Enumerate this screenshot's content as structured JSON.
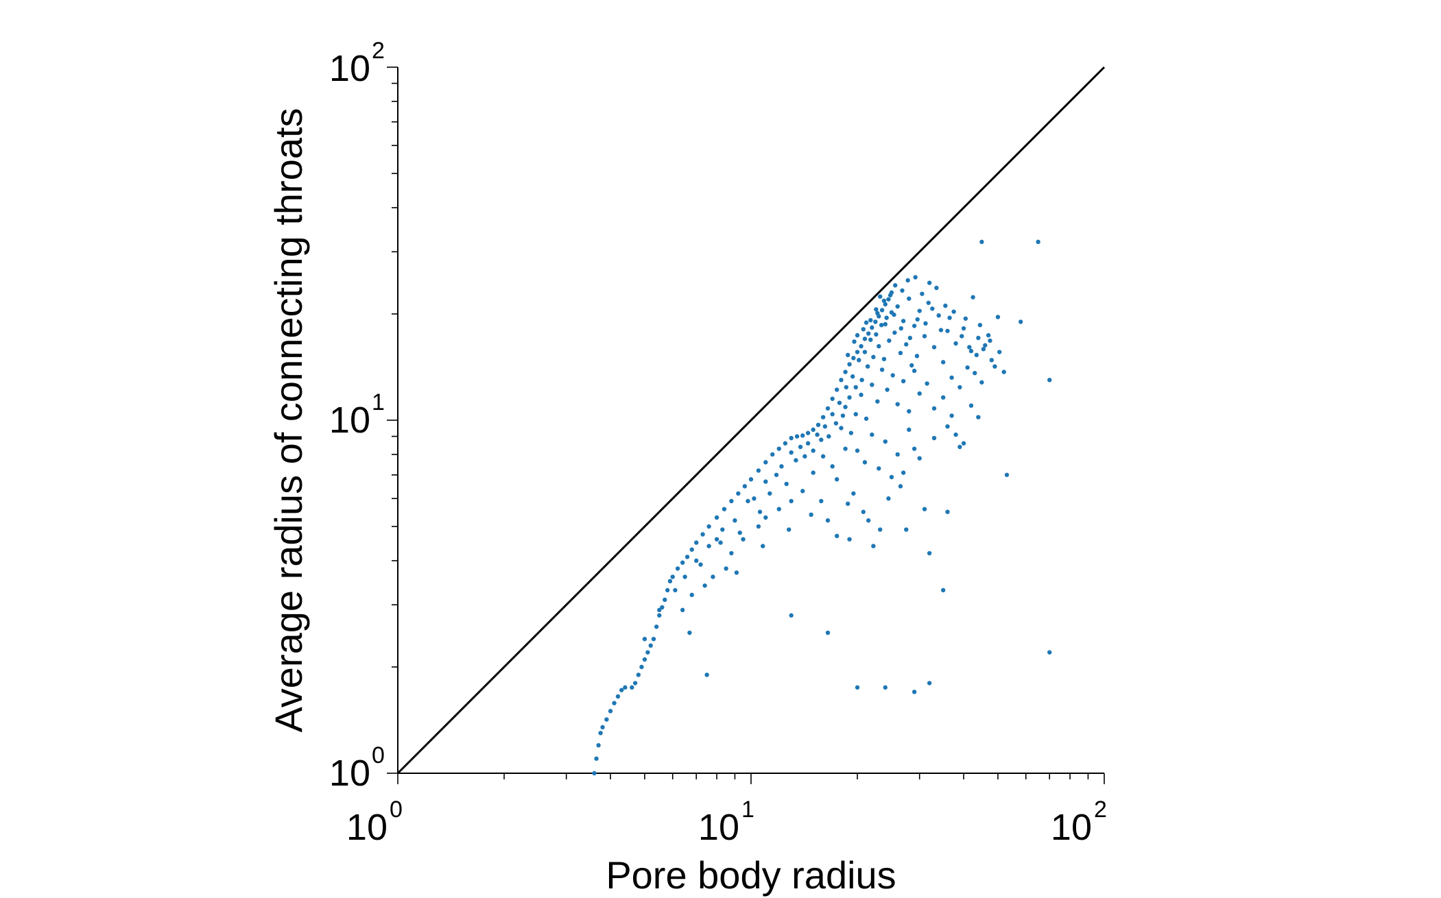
{
  "chart_data": {
    "type": "scatter",
    "xlabel": "Pore body radius",
    "ylabel": "Average radius of connecting throats",
    "xscale": "log",
    "yscale": "log",
    "xlim": [
      1,
      100
    ],
    "ylim": [
      1,
      100
    ],
    "x_ticks": [
      {
        "base": "10",
        "exp": "0",
        "value": 1
      },
      {
        "base": "10",
        "exp": "1",
        "value": 10
      },
      {
        "base": "10",
        "exp": "2",
        "value": 100
      }
    ],
    "y_ticks": [
      {
        "base": "10",
        "exp": "0",
        "value": 1
      },
      {
        "base": "10",
        "exp": "1",
        "value": 10
      },
      {
        "base": "10",
        "exp": "2",
        "value": 100
      }
    ],
    "grid": false,
    "reference_line": {
      "type": "y=x",
      "color": "#000000"
    },
    "marker_color": "#1f77b4",
    "points": [
      [
        3.6,
        1.0
      ],
      [
        3.65,
        1.1
      ],
      [
        3.7,
        1.2
      ],
      [
        3.75,
        1.3
      ],
      [
        3.8,
        1.35
      ],
      [
        3.9,
        1.42
      ],
      [
        4.0,
        1.5
      ],
      [
        4.1,
        1.58
      ],
      [
        4.2,
        1.65
      ],
      [
        4.3,
        1.72
      ],
      [
        4.4,
        1.75
      ],
      [
        4.6,
        1.75
      ],
      [
        4.7,
        1.8
      ],
      [
        4.8,
        1.9
      ],
      [
        4.9,
        2.0
      ],
      [
        5.0,
        2.1
      ],
      [
        5.1,
        2.2
      ],
      [
        5.2,
        2.3
      ],
      [
        5.3,
        2.4
      ],
      [
        5.4,
        2.6
      ],
      [
        5.5,
        2.8
      ],
      [
        5.6,
        2.95
      ],
      [
        5.7,
        3.1
      ],
      [
        5.8,
        3.3
      ],
      [
        5.9,
        3.5
      ],
      [
        6.0,
        3.6
      ],
      [
        6.2,
        3.8
      ],
      [
        6.4,
        3.95
      ],
      [
        6.6,
        4.1
      ],
      [
        6.8,
        4.3
      ],
      [
        7.0,
        4.5
      ],
      [
        7.3,
        4.75
      ],
      [
        7.6,
        5.0
      ],
      [
        8.0,
        5.3
      ],
      [
        8.4,
        5.6
      ],
      [
        8.8,
        5.9
      ],
      [
        9.2,
        6.2
      ],
      [
        9.6,
        6.5
      ],
      [
        10.0,
        6.8
      ],
      [
        10.5,
        7.2
      ],
      [
        11.0,
        7.6
      ],
      [
        11.5,
        8.0
      ],
      [
        12.0,
        8.3
      ],
      [
        12.5,
        8.6
      ],
      [
        13.0,
        8.9
      ],
      [
        13.5,
        9.0
      ],
      [
        14.0,
        9.05
      ],
      [
        14.5,
        9.2
      ],
      [
        15.0,
        9.4
      ],
      [
        15.5,
        9.7
      ],
      [
        16.0,
        10.2
      ],
      [
        16.5,
        10.8
      ],
      [
        17.0,
        11.5
      ],
      [
        17.5,
        12.2
      ],
      [
        18.0,
        13.0
      ],
      [
        18.5,
        13.7
      ],
      [
        19.0,
        14.4
      ],
      [
        19.5,
        15.0
      ],
      [
        20.0,
        15.6
      ],
      [
        20.5,
        16.2
      ],
      [
        21.0,
        17.0
      ],
      [
        21.5,
        17.6
      ],
      [
        22.0,
        18.3
      ],
      [
        22.5,
        19.0
      ],
      [
        23.0,
        19.7
      ],
      [
        23.5,
        20.5
      ],
      [
        24.0,
        21.3
      ],
      [
        24.5,
        22.0
      ],
      [
        25.0,
        23.0
      ],
      [
        5.0,
        2.4
      ],
      [
        5.5,
        2.9
      ],
      [
        6.1,
        3.3
      ],
      [
        6.5,
        3.6
      ],
      [
        7.0,
        4.0
      ],
      [
        7.2,
        3.9
      ],
      [
        7.6,
        4.4
      ],
      [
        8.0,
        4.6
      ],
      [
        8.3,
        4.9
      ],
      [
        8.5,
        3.8
      ],
      [
        9.0,
        5.2
      ],
      [
        9.3,
        4.8
      ],
      [
        9.8,
        5.9
      ],
      [
        10.2,
        6.0
      ],
      [
        10.6,
        5.5
      ],
      [
        11.0,
        6.7
      ],
      [
        11.3,
        6.2
      ],
      [
        11.8,
        7.0
      ],
      [
        12.2,
        7.4
      ],
      [
        12.6,
        6.6
      ],
      [
        13.0,
        8.1
      ],
      [
        13.4,
        7.7
      ],
      [
        13.8,
        8.4
      ],
      [
        14.2,
        7.9
      ],
      [
        14.5,
        8.6
      ],
      [
        15.0,
        8.2
      ],
      [
        15.4,
        9.1
      ],
      [
        15.8,
        8.8
      ],
      [
        16.2,
        9.6
      ],
      [
        16.6,
        9.0
      ],
      [
        17.0,
        10.4
      ],
      [
        17.4,
        9.8
      ],
      [
        17.8,
        11.2
      ],
      [
        18.2,
        10.3
      ],
      [
        18.6,
        12.4
      ],
      [
        19.0,
        11.6
      ],
      [
        19.4,
        13.3
      ],
      [
        19.8,
        12.4
      ],
      [
        20.2,
        14.8
      ],
      [
        20.6,
        13.0
      ],
      [
        21.0,
        15.6
      ],
      [
        21.4,
        14.2
      ],
      [
        21.8,
        16.9
      ],
      [
        22.2,
        15.1
      ],
      [
        22.6,
        17.5
      ],
      [
        23.0,
        16.2
      ],
      [
        23.4,
        18.6
      ],
      [
        23.8,
        14.9
      ],
      [
        24.2,
        19.5
      ],
      [
        24.6,
        16.8
      ],
      [
        25.0,
        20.2
      ],
      [
        25.5,
        17.7
      ],
      [
        26.0,
        21.0
      ],
      [
        26.5,
        15.5
      ],
      [
        27.0,
        19.1
      ],
      [
        27.5,
        16.4
      ],
      [
        28.0,
        22.1
      ],
      [
        28.5,
        14.3
      ],
      [
        29.0,
        18.5
      ],
      [
        29.5,
        15.2
      ],
      [
        30.0,
        20.4
      ],
      [
        31.0,
        17.3
      ],
      [
        32.0,
        24.5
      ],
      [
        33.0,
        16.1
      ],
      [
        34.0,
        19.8
      ],
      [
        35.0,
        14.6
      ],
      [
        36.0,
        17.9
      ],
      [
        37.0,
        13.2
      ],
      [
        38.0,
        16.5
      ],
      [
        39.0,
        12.4
      ],
      [
        40.0,
        18.2
      ],
      [
        41.0,
        14.1
      ],
      [
        42.0,
        15.7
      ],
      [
        43.0,
        13.6
      ],
      [
        44.0,
        17.1
      ],
      [
        45.0,
        12.8
      ],
      [
        46.0,
        16.3
      ],
      [
        48.0,
        14.8
      ],
      [
        50.0,
        19.6
      ],
      [
        52.0,
        13.7
      ],
      [
        18.0,
        9.5
      ],
      [
        18.5,
        10.9
      ],
      [
        19.2,
        9.2
      ],
      [
        19.8,
        10.4
      ],
      [
        20.5,
        11.8
      ],
      [
        21.2,
        10.1
      ],
      [
        22.0,
        12.6
      ],
      [
        22.8,
        11.3
      ],
      [
        23.5,
        13.9
      ],
      [
        24.3,
        12.2
      ],
      [
        25.2,
        13.4
      ],
      [
        26.0,
        11.1
      ],
      [
        27.0,
        12.9
      ],
      [
        28.0,
        10.6
      ],
      [
        29.0,
        13.8
      ],
      [
        30.0,
        11.9
      ],
      [
        31.5,
        12.7
      ],
      [
        33.0,
        10.8
      ],
      [
        35.0,
        11.6
      ],
      [
        37.0,
        10.3
      ],
      [
        20.0,
        8.2
      ],
      [
        21.0,
        7.6
      ],
      [
        22.0,
        9.1
      ],
      [
        23.0,
        7.3
      ],
      [
        24.0,
        8.7
      ],
      [
        25.0,
        6.9
      ],
      [
        26.0,
        8.0
      ],
      [
        27.0,
        7.1
      ],
      [
        28.0,
        9.4
      ],
      [
        29.0,
        8.3
      ],
      [
        17.0,
        7.4
      ],
      [
        17.5,
        6.8
      ],
      [
        18.5,
        8.3
      ],
      [
        19.5,
        6.2
      ],
      [
        16.0,
        7.9
      ],
      [
        15.0,
        7.1
      ],
      [
        14.0,
        6.3
      ],
      [
        13.0,
        5.9
      ],
      [
        12.0,
        5.6
      ],
      [
        11.0,
        5.3
      ],
      [
        10.5,
        5.0
      ],
      [
        9.5,
        4.6
      ],
      [
        8.8,
        4.2
      ],
      [
        8.2,
        4.5
      ],
      [
        7.8,
        3.6
      ],
      [
        7.4,
        3.4
      ],
      [
        6.8,
        3.2
      ],
      [
        6.4,
        2.9
      ],
      [
        9.1,
        3.7
      ],
      [
        10.8,
        4.4
      ],
      [
        12.8,
        4.9
      ],
      [
        14.8,
        5.4
      ],
      [
        16.5,
        5.2
      ],
      [
        18.8,
        5.8
      ],
      [
        20.8,
        5.5
      ],
      [
        23.2,
        4.9
      ],
      [
        24.5,
        6.0
      ],
      [
        26.5,
        6.5
      ],
      [
        30.0,
        7.8
      ],
      [
        33.0,
        8.9
      ],
      [
        36.0,
        9.6
      ],
      [
        38.0,
        9.1
      ],
      [
        39.0,
        8.4
      ],
      [
        22.2,
        4.4
      ],
      [
        27.5,
        4.9
      ],
      [
        31.0,
        5.6
      ],
      [
        17.5,
        4.7
      ],
      [
        19.0,
        4.6
      ],
      [
        21.5,
        5.2
      ],
      [
        15.8,
        5.9
      ],
      [
        24.8,
        22.6
      ],
      [
        23.8,
        21.8
      ],
      [
        25.6,
        24.1
      ],
      [
        26.8,
        23.3
      ],
      [
        27.8,
        24.9
      ],
      [
        29.2,
        25.4
      ],
      [
        30.5,
        22.8
      ],
      [
        31.8,
        21.5
      ],
      [
        33.5,
        23.7
      ],
      [
        35.5,
        21.1
      ],
      [
        37.5,
        20.3
      ],
      [
        40.5,
        19.4
      ],
      [
        42.5,
        22.3
      ],
      [
        44.5,
        18.6
      ],
      [
        47.0,
        17.4
      ],
      [
        21.8,
        19.2
      ],
      [
        22.6,
        20.6
      ],
      [
        23.2,
        22.4
      ],
      [
        20.8,
        18.1
      ],
      [
        19.6,
        16.7
      ],
      [
        18.8,
        15.3
      ],
      [
        20.0,
        17.4
      ],
      [
        21.2,
        18.9
      ],
      [
        22.8,
        20.1
      ],
      [
        24.0,
        18.7
      ],
      [
        25.4,
        19.9
      ],
      [
        26.6,
        18.2
      ],
      [
        28.2,
        17.1
      ],
      [
        29.6,
        19.3
      ],
      [
        31.2,
        18.8
      ],
      [
        32.6,
        20.7
      ],
      [
        34.5,
        18.0
      ],
      [
        36.5,
        19.5
      ],
      [
        39.5,
        17.3
      ],
      [
        41.5,
        16.1
      ],
      [
        43.5,
        15.3
      ],
      [
        45.5,
        15.9
      ],
      [
        47.5,
        16.8
      ],
      [
        49.0,
        14.2
      ],
      [
        50.5,
        15.6
      ],
      [
        45.0,
        32.0
      ],
      [
        65.0,
        32.0
      ],
      [
        58.0,
        19.0
      ],
      [
        70.0,
        13.0
      ],
      [
        53.0,
        7.0
      ],
      [
        32.0,
        4.2
      ],
      [
        35.0,
        3.3
      ],
      [
        13.0,
        2.8
      ],
      [
        16.5,
        2.5
      ],
      [
        6.7,
        2.5
      ],
      [
        7.5,
        1.9
      ],
      [
        20.0,
        1.75
      ],
      [
        24.0,
        1.75
      ],
      [
        29.0,
        1.7
      ],
      [
        32.0,
        1.8
      ],
      [
        70.0,
        2.2
      ],
      [
        42.0,
        11.0
      ],
      [
        44.0,
        10.2
      ],
      [
        40.0,
        8.6
      ],
      [
        36.0,
        5.5
      ]
    ]
  }
}
